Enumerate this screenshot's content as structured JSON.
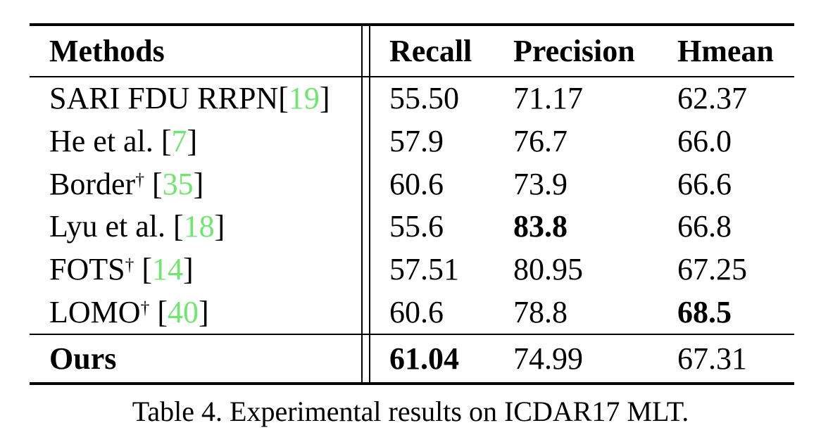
{
  "table": {
    "header": {
      "methods": "Methods",
      "recall": "Recall",
      "precision": "Precision",
      "hmean": "Hmean"
    },
    "rows": [
      {
        "name": "SARI FDU RRPN",
        "dagger": false,
        "space_before_cite": false,
        "cite": "19",
        "recall": "55.50",
        "precision": "71.17",
        "hmean": "62.37",
        "bold_cells": []
      },
      {
        "name": "He et al.",
        "dagger": false,
        "space_before_cite": true,
        "cite": "7",
        "recall": "57.9",
        "precision": "76.7",
        "hmean": "66.0",
        "bold_cells": []
      },
      {
        "name": "Border",
        "dagger": true,
        "space_before_cite": true,
        "cite": "35",
        "recall": "60.6",
        "precision": "73.9",
        "hmean": "66.6",
        "bold_cells": []
      },
      {
        "name": "Lyu et al.",
        "dagger": false,
        "space_before_cite": true,
        "cite": "18",
        "recall": "55.6",
        "precision": "83.8",
        "hmean": "66.8",
        "bold_cells": [
          "precision"
        ]
      },
      {
        "name": "FOTS",
        "dagger": true,
        "space_before_cite": true,
        "cite": "14",
        "recall": "57.51",
        "precision": "80.95",
        "hmean": "67.25",
        "bold_cells": []
      },
      {
        "name": "LOMO",
        "dagger": true,
        "space_before_cite": true,
        "cite": "40",
        "recall": "60.6",
        "precision": "78.8",
        "hmean": "68.5",
        "bold_cells": [
          "hmean"
        ]
      }
    ],
    "footer_row": {
      "name": "Ours",
      "recall": "61.04",
      "precision": "74.99",
      "hmean": "67.31",
      "bold_cells": [
        "method",
        "recall"
      ]
    },
    "caption": "Table 4. Experimental results on ICDAR17 MLT.",
    "dagger_symbol": "†",
    "cite_brackets": [
      "[",
      "]"
    ],
    "colors": {
      "citation_green": "#70e570",
      "text_black": "#000000"
    }
  }
}
